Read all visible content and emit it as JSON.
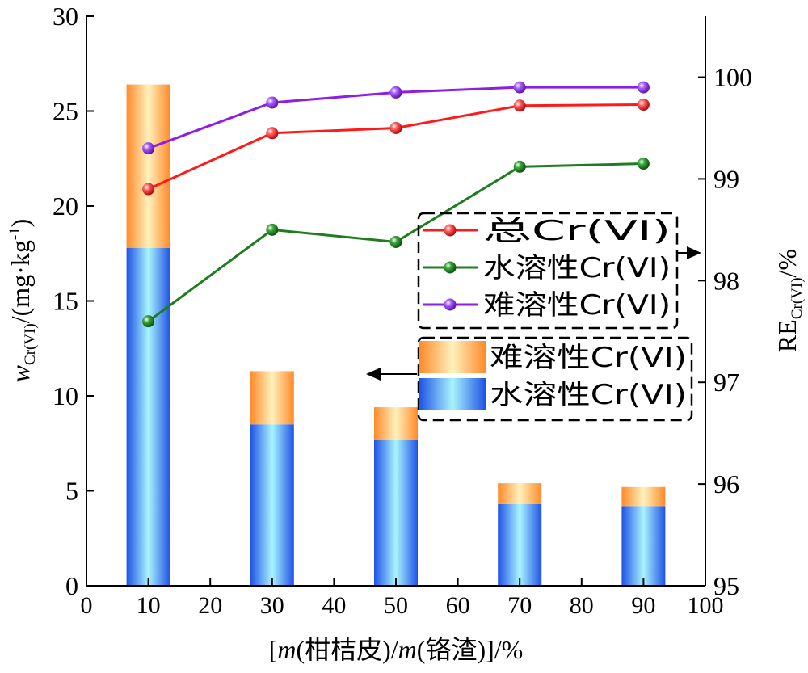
{
  "chart_data": {
    "type": "bar",
    "x_ticks": [
      "0",
      "10",
      "20",
      "30",
      "40",
      "50",
      "60",
      "70",
      "80",
      "90",
      "100"
    ],
    "x_range": [
      0,
      100
    ],
    "xlabel": "[m(柑桔皮)/m(铬渣)]/%",
    "xlabel_parts": {
      "open": "[",
      "m1": "m",
      "p1": "(柑桔皮)/",
      "m2": "m",
      "p2": "(铬渣)",
      "close": "]/%"
    },
    "y_left": {
      "label": "w_Cr(VI)/(mg·kg⁻¹)",
      "label_parts": {
        "w": "w",
        "sub": "Cr(VI)",
        "unit": "/(mg·kg",
        "sup": "-1",
        "close": ")"
      },
      "range": [
        0,
        30
      ],
      "ticks": [
        "0",
        "5",
        "10",
        "15",
        "20",
        "25",
        "30"
      ]
    },
    "y_right": {
      "label": "RE_Cr(VI)/%",
      "label_parts": {
        "re": "RE",
        "sub": "Cr(VI)",
        "unit": "/%"
      },
      "range": [
        95,
        100.6
      ],
      "ticks": [
        "95",
        "96",
        "97",
        "98",
        "99",
        "100"
      ]
    },
    "bars": {
      "x": [
        10,
        30,
        50,
        70,
        90
      ],
      "stacked": true,
      "series": [
        {
          "name": "水溶性Cr(VI)",
          "values": [
            17.8,
            8.5,
            7.7,
            4.3,
            4.2
          ],
          "colors": [
            "#1f52e6",
            "#a8f4ff"
          ]
        },
        {
          "name": "难溶性Cr(VI)",
          "values": [
            8.6,
            2.8,
            1.7,
            1.1,
            1.0
          ],
          "colors": [
            "#ff8a2a",
            "#fff1bc"
          ]
        }
      ]
    },
    "lines": {
      "x": [
        10,
        30,
        50,
        70,
        90
      ],
      "axis": "right",
      "series": [
        {
          "name": "总Cr(VI)",
          "values": [
            98.9,
            99.45,
            99.5,
            99.72,
            99.73
          ],
          "color": "#ff1a1a"
        },
        {
          "name": "水溶性Cr(VI)",
          "values": [
            97.6,
            98.5,
            98.38,
            99.12,
            99.15
          ],
          "color": "#1e7d1e"
        },
        {
          "name": "难溶性Cr(VI)",
          "values": [
            99.3,
            99.75,
            99.85,
            99.9,
            99.9
          ],
          "color": "#8c1ee6"
        }
      ]
    },
    "legend_lines": [
      "总Cr(VI)",
      "水溶性Cr(VI)",
      "难溶性Cr(VI)"
    ],
    "legend_bars": [
      "难溶性Cr(VI)",
      "水溶性Cr(VI)"
    ],
    "grid": false
  }
}
